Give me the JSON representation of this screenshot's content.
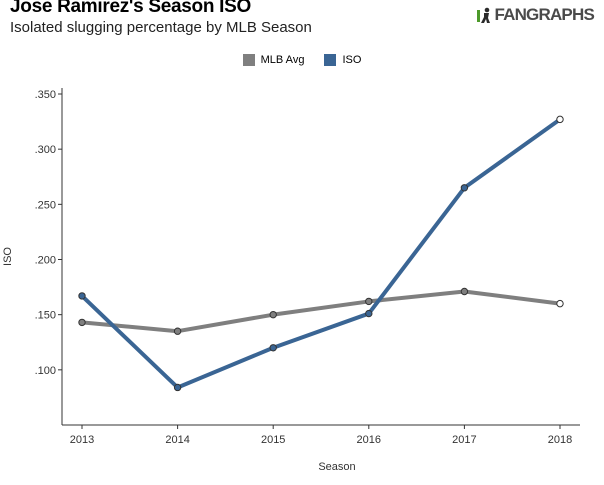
{
  "header": {
    "title": "Jose Ramirez's Season ISO",
    "subtitle": "Isolated slugging percentage by MLB Season",
    "logo_text": "FANGRAPHS"
  },
  "colors": {
    "mlb_avg": "#7f7f7f",
    "iso": "#3a6594",
    "axis": "#333333",
    "logo_green": "#4d9a2a"
  },
  "chart_data": {
    "type": "line",
    "title": "Jose Ramirez's Season ISO",
    "subtitle": "Isolated slugging percentage by MLB Season",
    "xlabel": "Season",
    "ylabel": "ISO",
    "categories": [
      "2013",
      "2014",
      "2015",
      "2016",
      "2017",
      "2018"
    ],
    "ylim": [
      0.05,
      0.355
    ],
    "yticks": [
      0.1,
      0.15,
      0.2,
      0.25,
      0.3,
      0.35
    ],
    "ytick_labels": [
      ".100",
      ".150",
      ".200",
      ".250",
      ".300",
      ".350"
    ],
    "grid": false,
    "legend": "top-center",
    "series": [
      {
        "name": "MLB Avg",
        "color": "#7f7f7f",
        "values": [
          0.143,
          0.135,
          0.15,
          0.162,
          0.171,
          0.16
        ]
      },
      {
        "name": "ISO",
        "color": "#3a6594",
        "values": [
          0.167,
          0.084,
          0.12,
          0.151,
          0.265,
          0.327
        ]
      }
    ]
  }
}
